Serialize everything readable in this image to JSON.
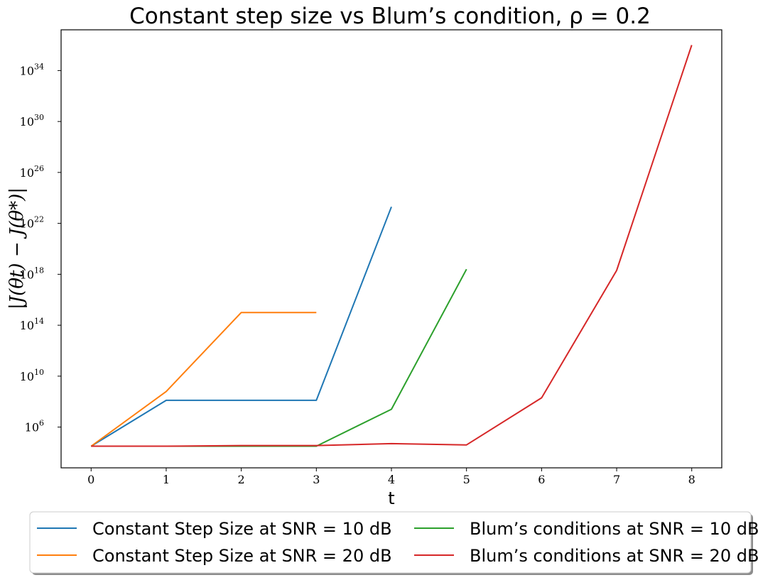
{
  "chart_data": {
    "type": "line",
    "title": "Constant step size vs Blum’s condition, ρ = 0.2",
    "xlabel": "t",
    "ylabel": "|J(θt) − J(θ*)|",
    "yscale": "log",
    "xlim": [
      -0.4,
      8.4
    ],
    "ylim_exponent": [
      2.8,
      37.2
    ],
    "xticks": [
      0,
      1,
      2,
      3,
      4,
      5,
      6,
      7,
      8
    ],
    "yticks_exponent": [
      6,
      10,
      14,
      18,
      22,
      26,
      30,
      34
    ],
    "ytick_base": "10",
    "grid": false,
    "legend_position": "below-center",
    "legend_columns": 2,
    "series": [
      {
        "name": "Constant Step Size at SNR = 10 dB",
        "color": "#1f77b4",
        "x": [
          0,
          1,
          2,
          3,
          4
        ],
        "y": [
          "1e4.5",
          "1e8.1",
          "1e8.1",
          "1e8.1",
          "1e23.3"
        ]
      },
      {
        "name": "Constant Step Size at SNR = 20 dB",
        "color": "#ff7f0e",
        "x": [
          0,
          1,
          2,
          3
        ],
        "y": [
          "1e4.5",
          "1e8.8",
          "1e15.0",
          "1e15.0"
        ]
      },
      {
        "name": "Blum’s conditions at SNR = 10 dB",
        "color": "#2ca02c",
        "x": [
          0,
          1,
          2,
          3,
          4,
          5
        ],
        "y": [
          "1e4.5",
          "1e4.5",
          "1e4.5",
          "1e4.5",
          "1e7.4",
          "1e18.4"
        ]
      },
      {
        "name": "Blum’s conditions at SNR = 20 dB",
        "color": "#d62728",
        "x": [
          0,
          1,
          2,
          3,
          4,
          5,
          6,
          7,
          8
        ],
        "y": [
          "1e4.5",
          "1e4.5",
          "1e4.55",
          "1e4.55",
          "1e4.7",
          "1e4.6",
          "1e8.3",
          "1e18.3",
          "1e36.0"
        ]
      }
    ]
  }
}
